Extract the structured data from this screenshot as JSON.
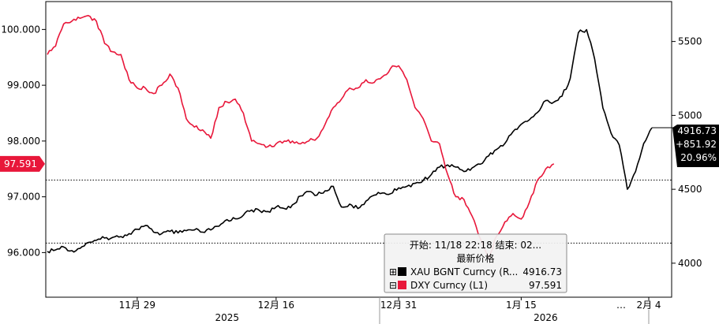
{
  "chart_data": {
    "type": "line",
    "left_axis": {
      "ticks": [
        96,
        97,
        98,
        99,
        100
      ],
      "tick_labels": [
        "96.000",
        "97.000",
        "98.000",
        "99.000",
        "100.000"
      ],
      "range": [
        95.2,
        100.5
      ]
    },
    "right_axis": {
      "ticks": [
        4000,
        4500,
        5000,
        5500
      ],
      "tick_labels": [
        "4000",
        "4500",
        "5000",
        "5500"
      ],
      "range": [
        3770,
        5770
      ]
    },
    "x_axis": {
      "range": [
        0,
        74
      ],
      "ticks": [
        {
          "day": 11,
          "label": "11月 29"
        },
        {
          "day": 28,
          "label": "12月 16"
        },
        {
          "day": 43,
          "label": "12月 31"
        },
        {
          "day": 58,
          "label": "1月 15"
        },
        {
          "day": 80,
          "label": "2月 4"
        }
      ],
      "years": [
        {
          "day": 22,
          "label": "2025"
        },
        {
          "day": 61,
          "label": "2026"
        }
      ],
      "ellipsis": "…"
    },
    "reference_lines": [
      {
        "axis": "left",
        "value": 97.3
      },
      {
        "axis": "left",
        "value": 96.17
      }
    ],
    "series": [
      {
        "name": "XAU BGNT Curncy",
        "axis": "right",
        "color": "#000000",
        "points": [
          [
            0,
            4080
          ],
          [
            1,
            4090
          ],
          [
            2,
            4110
          ],
          [
            3,
            4085
          ],
          [
            4,
            4100
          ],
          [
            5,
            4140
          ],
          [
            6,
            4155
          ],
          [
            7,
            4170
          ],
          [
            8,
            4175
          ],
          [
            9,
            4180
          ],
          [
            10,
            4200
          ],
          [
            11,
            4230
          ],
          [
            12,
            4255
          ],
          [
            13,
            4210
          ],
          [
            14,
            4200
          ],
          [
            15,
            4215
          ],
          [
            16,
            4205
          ],
          [
            17,
            4220
          ],
          [
            18,
            4225
          ],
          [
            19,
            4210
          ],
          [
            20,
            4225
          ],
          [
            21,
            4250
          ],
          [
            22,
            4295
          ],
          [
            23,
            4300
          ],
          [
            24,
            4325
          ],
          [
            25,
            4360
          ],
          [
            26,
            4355
          ],
          [
            27,
            4350
          ],
          [
            28,
            4380
          ],
          [
            29,
            4370
          ],
          [
            30,
            4395
          ],
          [
            31,
            4455
          ],
          [
            32,
            4485
          ],
          [
            33,
            4460
          ],
          [
            34,
            4490
          ],
          [
            35,
            4520
          ],
          [
            36,
            4380
          ],
          [
            37,
            4400
          ],
          [
            38,
            4370
          ],
          [
            39,
            4420
          ],
          [
            40,
            4460
          ],
          [
            41,
            4475
          ],
          [
            42,
            4470
          ],
          [
            43,
            4510
          ],
          [
            44,
            4520
          ],
          [
            45,
            4540
          ],
          [
            46,
            4560
          ],
          [
            47,
            4600
          ],
          [
            48,
            4650
          ],
          [
            49,
            4665
          ],
          [
            50,
            4650
          ],
          [
            51,
            4620
          ],
          [
            52,
            4645
          ],
          [
            53,
            4670
          ],
          [
            54,
            4725
          ],
          [
            55,
            4770
          ],
          [
            56,
            4810
          ],
          [
            57,
            4890
          ],
          [
            58,
            4940
          ],
          [
            59,
            4970
          ],
          [
            60,
            5020
          ],
          [
            61,
            5100
          ],
          [
            62,
            5090
          ],
          [
            63,
            5130
          ],
          [
            64,
            5250
          ],
          [
            65,
            5560
          ],
          [
            66,
            5580
          ],
          [
            67,
            5380
          ],
          [
            68,
            5050
          ],
          [
            69,
            4880
          ],
          [
            70,
            4800
          ],
          [
            71,
            4500
          ],
          [
            72,
            4620
          ],
          [
            73,
            4810
          ],
          [
            74,
            4916.73
          ]
        ]
      },
      {
        "name": "DXY Curncy",
        "axis": "left",
        "color": "#e8173a",
        "points": [
          [
            0,
            99.55
          ],
          [
            1,
            99.7
          ],
          [
            2,
            100.1
          ],
          [
            3,
            100.15
          ],
          [
            4,
            100.2
          ],
          [
            5,
            100.25
          ],
          [
            6,
            100.15
          ],
          [
            7,
            99.75
          ],
          [
            8,
            99.6
          ],
          [
            9,
            99.55
          ],
          [
            10,
            99.1
          ],
          [
            11,
            98.95
          ],
          [
            12,
            98.95
          ],
          [
            13,
            98.85
          ],
          [
            14,
            99.0
          ],
          [
            15,
            99.2
          ],
          [
            16,
            98.95
          ],
          [
            17,
            98.4
          ],
          [
            18,
            98.25
          ],
          [
            19,
            98.2
          ],
          [
            20,
            98.05
          ],
          [
            21,
            98.6
          ],
          [
            22,
            98.7
          ],
          [
            23,
            98.75
          ],
          [
            24,
            98.5
          ],
          [
            25,
            98.0
          ],
          [
            26,
            97.95
          ],
          [
            27,
            97.9
          ],
          [
            28,
            97.95
          ],
          [
            29,
            98.0
          ],
          [
            30,
            98.0
          ],
          [
            31,
            97.95
          ],
          [
            32,
            98.0
          ],
          [
            33,
            98.05
          ],
          [
            34,
            98.3
          ],
          [
            35,
            98.6
          ],
          [
            36,
            98.75
          ],
          [
            37,
            98.95
          ],
          [
            38,
            98.95
          ],
          [
            39,
            99.1
          ],
          [
            40,
            99.05
          ],
          [
            41,
            99.15
          ],
          [
            42,
            99.3
          ],
          [
            43,
            99.35
          ],
          [
            44,
            99.1
          ],
          [
            45,
            98.6
          ],
          [
            46,
            98.4
          ],
          [
            47,
            98.0
          ],
          [
            48,
            97.95
          ],
          [
            49,
            97.4
          ],
          [
            50,
            97.0
          ],
          [
            51,
            96.95
          ],
          [
            52,
            96.65
          ],
          [
            53,
            96.25
          ],
          [
            54,
            95.9
          ],
          [
            55,
            96.3
          ],
          [
            56,
            96.55
          ],
          [
            57,
            96.7
          ],
          [
            58,
            96.6
          ],
          [
            59,
            96.9
          ],
          [
            60,
            97.3
          ],
          [
            61,
            97.5
          ],
          [
            62,
            97.591
          ]
        ]
      }
    ],
    "flags": {
      "left_flag": {
        "value": 97.591,
        "label": "97.591"
      },
      "right_flag": {
        "value": 4916.73,
        "lines": [
          "4916.73",
          "+851.92",
          "20.96%"
        ]
      }
    },
    "legend": {
      "placement": "bottom-right",
      "header": "开始: 11/18 22:18 结束: 02...",
      "subheader": "最新价格",
      "entries": [
        {
          "marker": "⊞",
          "label": "XAU BGNT Curncy  (R...",
          "value": "4916.73",
          "color": "#000000"
        },
        {
          "marker": "⊟",
          "label": "DXY Curncy  (L1)",
          "value": "97.591",
          "color": "#e8173a"
        }
      ]
    }
  }
}
